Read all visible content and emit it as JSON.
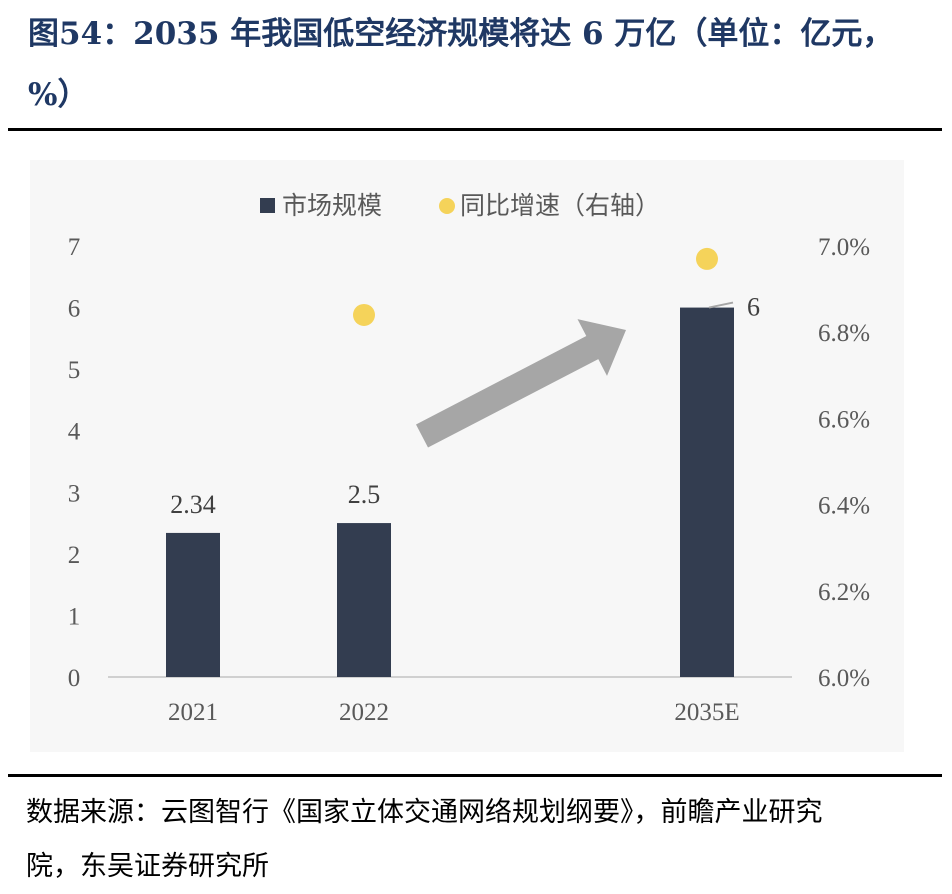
{
  "title": "图54：2035 年我国低空经济规模将达 6 万亿（单位：亿元，%）",
  "source": "数据来源：云图智行《国家立体交通网络规划纲要》，前瞻产业研究院，东吴证券研究所",
  "colors": {
    "bar": "#333d50",
    "dot": "#f5d35a",
    "arrow": "#a6a6a6",
    "title": "#1f3864"
  },
  "chart_data": {
    "type": "bar",
    "categories": [
      "2021",
      "2022",
      "2035E"
    ],
    "series": [
      {
        "name": "市场规模",
        "type": "bar",
        "axis": "left",
        "values": [
          2.34,
          2.5,
          6
        ],
        "labels": [
          "2.34",
          "2.5",
          "6"
        ]
      },
      {
        "name": "同比增速（右轴）",
        "type": "scatter",
        "axis": "right",
        "values": [
          null,
          6.84,
          6.97
        ]
      }
    ],
    "y_left": {
      "min": 0,
      "max": 7,
      "ticks": [
        "0",
        "1",
        "2",
        "3",
        "4",
        "5",
        "6",
        "7"
      ]
    },
    "y_right": {
      "min": 6.0,
      "max": 7.0,
      "ticks": [
        "6.0%",
        "6.2%",
        "6.4%",
        "6.6%",
        "6.8%",
        "7.0%"
      ]
    },
    "legend": "top",
    "annotation": "upward arrow"
  }
}
